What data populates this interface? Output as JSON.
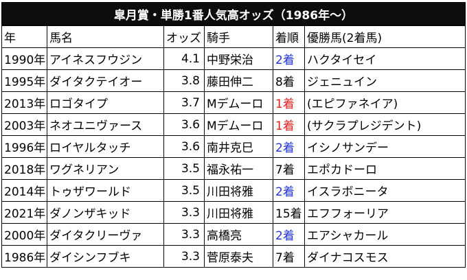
{
  "title": "皐月賞・単勝1番人気高オッズ（1986年〜）",
  "columns": [
    "年",
    "馬名",
    "オッズ",
    "騎手",
    "着順",
    "優勝馬(2着馬)"
  ],
  "colors": {
    "first_place": "#e0201c",
    "second_place": "#2236d6",
    "default": "#000000",
    "title_bg": "#0d0d0d",
    "title_text": "#ffffff"
  },
  "rows": [
    {
      "year": "1990年",
      "horse": "アイネスフウジン",
      "odds": "4.1",
      "jockey": "中野栄治",
      "place": "2着",
      "winner": "ハクタイセイ"
    },
    {
      "year": "1995年",
      "horse": "ダイタクテイオー",
      "odds": "3.8",
      "jockey": "藤田伸二",
      "place": "8着",
      "winner": "ジェニュイン"
    },
    {
      "year": "2013年",
      "horse": "ロゴタイプ",
      "odds": "3.7",
      "jockey": "Mデムーロ",
      "place": "1着",
      "winner": "(エピファネイア)"
    },
    {
      "year": "2003年",
      "horse": "ネオユニヴァース",
      "odds": "3.6",
      "jockey": "Mデムーロ",
      "place": "1着",
      "winner": "(サクラプレジデント)"
    },
    {
      "year": "1996年",
      "horse": "ロイヤルタッチ",
      "odds": "3.6",
      "jockey": "南井克巳",
      "place": "2着",
      "winner": "イシノサンデー"
    },
    {
      "year": "2018年",
      "horse": "ワグネリアン",
      "odds": "3.5",
      "jockey": "福永祐一",
      "place": "7着",
      "winner": "エポカドーロ"
    },
    {
      "year": "2014年",
      "horse": "トゥザワールド",
      "odds": "3.5",
      "jockey": "川田将雅",
      "place": "2着",
      "winner": "イスラボニータ"
    },
    {
      "year": "2021年",
      "horse": "ダノンザキッド",
      "odds": "3.3",
      "jockey": "川田将雅",
      "place": "15着",
      "winner": "エフフォーリア"
    },
    {
      "year": "2000年",
      "horse": "ダイタクリーヴァ",
      "odds": "3.3",
      "jockey": "高橋亮",
      "place": "2着",
      "winner": "エアシャカール"
    },
    {
      "year": "1986年",
      "horse": "ダイシンフブキ",
      "odds": "3.3",
      "jockey": "菅原泰夫",
      "place": "7着",
      "winner": "ダイナコスモス"
    }
  ]
}
